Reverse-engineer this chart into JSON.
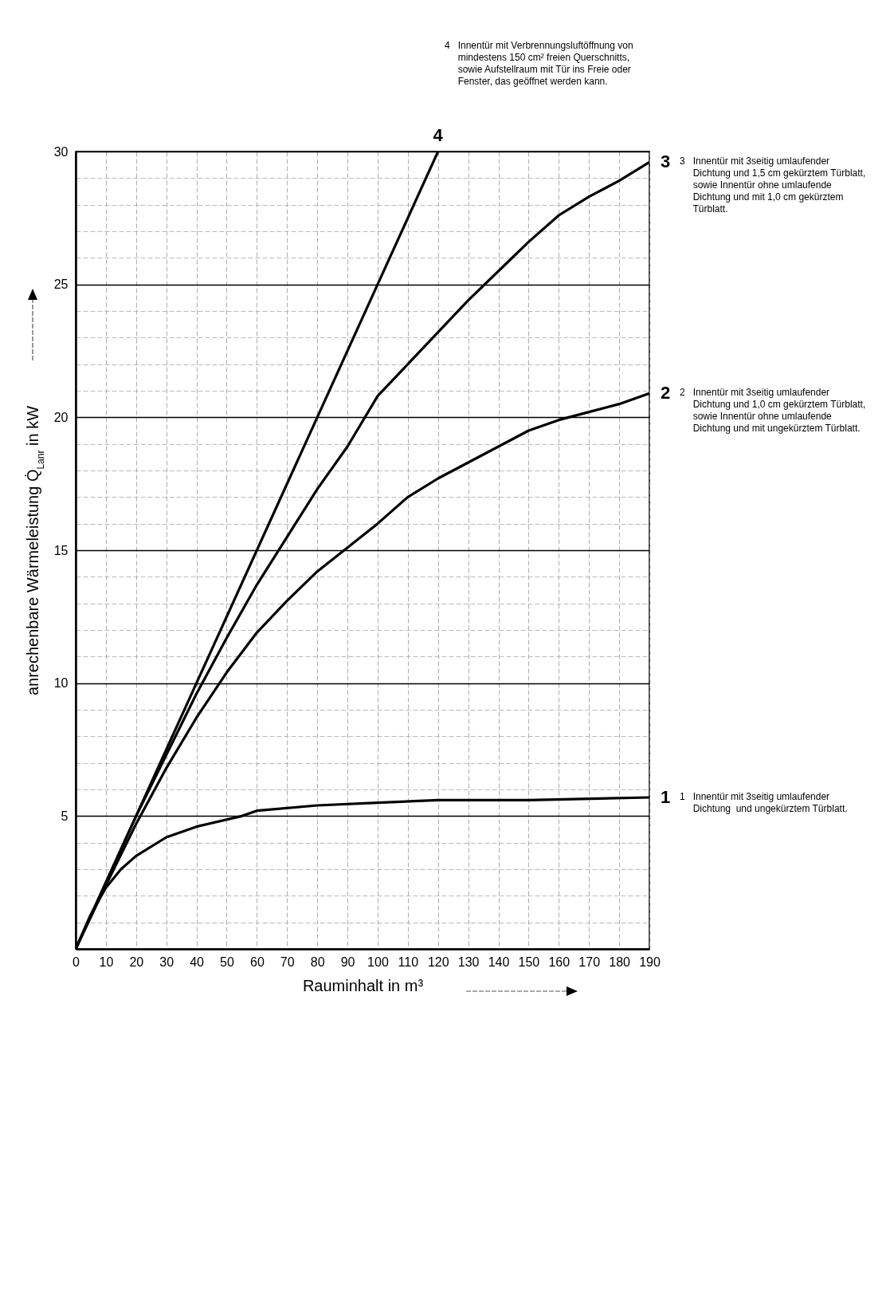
{
  "chart_data": {
    "type": "line",
    "xlabel": "Rauminhalt in m³",
    "ylabel": "anrechenbare Wärmeleistung Q̇$_{Lanr}$ in kW",
    "xlim": [
      0,
      190
    ],
    "xticks": [
      0,
      10,
      20,
      30,
      40,
      50,
      60,
      70,
      80,
      90,
      100,
      110,
      120,
      130,
      140,
      150,
      160,
      170,
      180,
      190
    ],
    "ylim": [
      0,
      30
    ],
    "yticks": [
      {
        "value": 0,
        "label": null
      },
      {
        "value": 1,
        "label": null
      },
      {
        "value": 2,
        "label": null
      },
      {
        "value": 3,
        "label": null
      },
      {
        "value": 4,
        "label": null
      },
      5,
      {
        "value": 6,
        "label": null
      },
      {
        "value": 7,
        "label": null
      },
      {
        "value": 8,
        "label": null
      },
      {
        "value": 9,
        "label": null
      },
      10,
      {
        "value": 11,
        "label": null
      },
      {
        "value": 12,
        "label": null
      },
      {
        "value": 13,
        "label": null
      },
      {
        "value": 14,
        "label": null
      },
      15,
      {
        "value": 16,
        "label": null
      },
      {
        "value": 17,
        "label": null
      },
      {
        "value": 18,
        "label": null
      },
      {
        "value": 19,
        "label": null
      },
      20,
      {
        "value": 21,
        "label": null
      },
      {
        "value": 22,
        "label": null
      },
      {
        "value": 23,
        "label": null
      },
      {
        "value": 24,
        "label": null
      },
      25,
      {
        "value": 26,
        "label": null
      },
      {
        "value": 27,
        "label": null
      },
      {
        "value": 28,
        "label": null
      },
      {
        "value": 29,
        "label": null
      },
      30
    ],
    "grid": true,
    "line_style": "solid",
    "marker": "none",
    "series": [
      {
        "name": "1",
        "color": "#000000",
        "x": [
          0,
          5,
          10,
          15,
          20,
          30,
          40,
          55,
          60,
          80,
          100,
          120,
          150,
          190
        ],
        "values": [
          0,
          1.3,
          2.3,
          3.0,
          3.5,
          4.2,
          4.6,
          5.0,
          5.2,
          5.4,
          5.5,
          5.6,
          5.6,
          5.7
        ]
      },
      {
        "name": "2",
        "color": "#000000",
        "x": [
          0,
          10,
          20,
          30,
          40,
          50,
          60,
          70,
          80,
          90,
          100,
          110,
          120,
          130,
          140,
          150,
          160,
          170,
          180,
          190
        ],
        "values": [
          0,
          2.4,
          4.7,
          6.8,
          8.7,
          10.4,
          11.9,
          13.1,
          14.2,
          15.1,
          16.0,
          17.0,
          17.7,
          18.3,
          18.9,
          19.5,
          19.9,
          20.2,
          20.5,
          20.9
        ]
      },
      {
        "name": "3",
        "color": "#000000",
        "x": [
          0,
          10,
          20,
          30,
          40,
          50,
          60,
          70,
          80,
          90,
          100,
          110,
          120,
          130,
          140,
          150,
          160,
          170,
          180,
          190
        ],
        "values": [
          0,
          2.5,
          5.0,
          7.3,
          9.6,
          11.7,
          13.7,
          15.5,
          17.3,
          18.9,
          20.8,
          22.0,
          23.2,
          24.4,
          25.5,
          26.6,
          27.6,
          28.3,
          28.9,
          29.6
        ]
      },
      {
        "name": "4",
        "color": "#000000",
        "x": [
          0,
          20,
          40,
          60,
          80,
          100,
          120
        ],
        "values": [
          0,
          5,
          10,
          15,
          20,
          25,
          30
        ]
      }
    ],
    "annotations": [
      "4   Innentür mit Verbrennungsluftöffnung von\n     mindestens 150 cm² freien Querschnitts,\n     sowie Aufstellraum mit Tür ins Freie oder\n     Fenster, das geöffnet werden kann.",
      "3   Innentür mit 3seitig umlaufender\n     Dichtung und 1,5 cm gekürztem Türblatt,\n     sowie Innentür ohne umlaufende\n     Dichtung und mit 1,0 cm gekürztem\n     Türblatt.",
      "2   Innentür mit 3seitig umlaufender\n     Dichtung und 1,0 cm gekürztem Türblatt,\n     sowie Innentür ohne umlaufende\n     Dichtung und mit ungekürztem Türblatt.",
      "1   Innentür mit 3seitig umlaufender\n     Dichtung  und ungekürztem Türblatt."
    ]
  }
}
